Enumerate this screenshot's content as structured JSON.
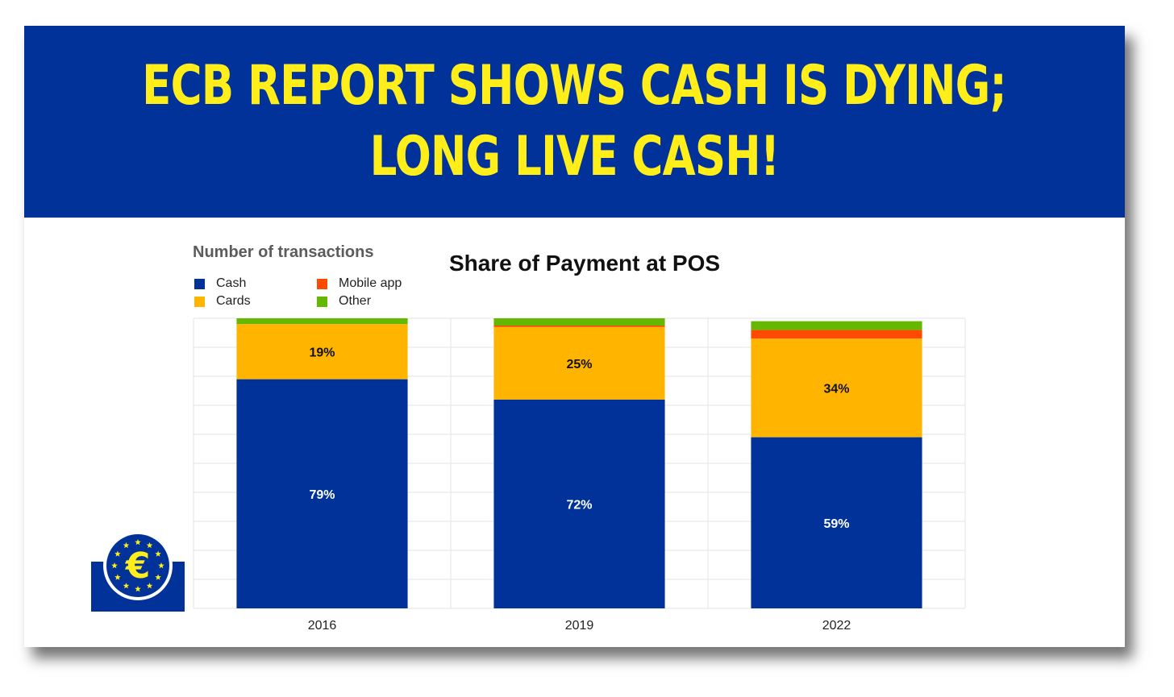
{
  "banner": {
    "line1": "ECB REPORT SHOWS CASH IS DYING;",
    "line2": "LONG LIVE CASH!"
  },
  "colors": {
    "banner_bg": "#003299",
    "banner_text": "#ffee1a",
    "cash": "#003299",
    "cards": "#ffb400",
    "mobile_app": "#ff4b00",
    "other": "#65b800"
  },
  "logo": {
    "icon": "ecb-euro-stars-logo"
  },
  "chart_data": {
    "type": "bar",
    "stacked": true,
    "title": "Share of Payment at POS",
    "subtitle": "Number of transactions",
    "categories": [
      "2016",
      "2019",
      "2022"
    ],
    "ylim": [
      0,
      100
    ],
    "grid": true,
    "legend_position": "top-left",
    "series": [
      {
        "name": "Cash",
        "color": "#003299",
        "values": [
          79,
          72,
          59
        ],
        "labels": [
          "79%",
          "72%",
          "59%"
        ]
      },
      {
        "name": "Cards",
        "color": "#ffb400",
        "values": [
          19,
          25,
          34
        ],
        "labels": [
          "19%",
          "25%",
          "34%"
        ]
      },
      {
        "name": "Mobile app",
        "color": "#ff4b00",
        "values": [
          0,
          0.5,
          3
        ],
        "labels": [
          "",
          "",
          ""
        ]
      },
      {
        "name": "Other",
        "color": "#65b800",
        "values": [
          2,
          2.5,
          3
        ],
        "labels": [
          "",
          "",
          ""
        ]
      }
    ]
  }
}
